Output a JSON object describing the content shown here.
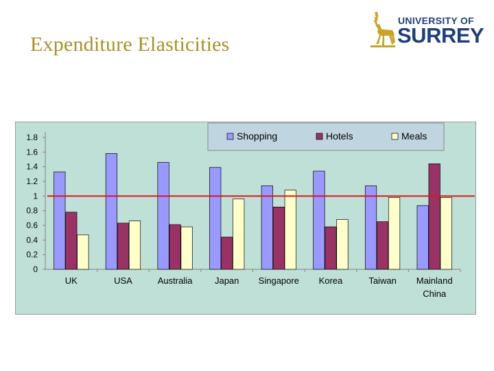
{
  "slide": {
    "title": "Expenditure Elasticities"
  },
  "logo": {
    "line1": "UNIVERSITY OF",
    "line2": "SURREY",
    "icon": "stag-icon",
    "color": "#1f3f7a",
    "stag_color": "#c9a227"
  },
  "colors": {
    "plot_bg": "#bfe0d6",
    "title": "#a8902a",
    "reference_line": "#e0141a"
  },
  "chart_data": {
    "type": "bar",
    "categories": [
      "UK",
      "USA",
      "Australia",
      "Japan",
      "Singapore",
      "Korea",
      "Taiwan",
      "Mainland China"
    ],
    "category_lines": [
      [
        "UK"
      ],
      [
        "USA"
      ],
      [
        "Australia"
      ],
      [
        "Japan"
      ],
      [
        "Singapore"
      ],
      [
        "Korea"
      ],
      [
        "Taiwan"
      ],
      [
        "Mainland",
        "China"
      ]
    ],
    "series": [
      {
        "name": "Shopping",
        "color": "#9999ff",
        "values": [
          1.33,
          1.58,
          1.46,
          1.39,
          1.14,
          1.34,
          1.14,
          0.87
        ]
      },
      {
        "name": "Hotels",
        "color": "#993366",
        "values": [
          0.78,
          0.63,
          0.61,
          0.44,
          0.85,
          0.58,
          0.65,
          1.44
        ]
      },
      {
        "name": "Meals",
        "color": "#ffffcc",
        "values": [
          0.47,
          0.66,
          0.58,
          0.96,
          1.08,
          0.68,
          0.98,
          0.98
        ]
      }
    ],
    "ylim": [
      0,
      1.8
    ],
    "yticks": [
      0,
      0.2,
      0.4,
      0.6,
      0.8,
      1,
      1.2,
      1.4,
      1.6,
      1.8
    ],
    "reference_line": 1,
    "legend_position": "top",
    "grid": false,
    "title": "",
    "xlabel": "",
    "ylabel": ""
  }
}
